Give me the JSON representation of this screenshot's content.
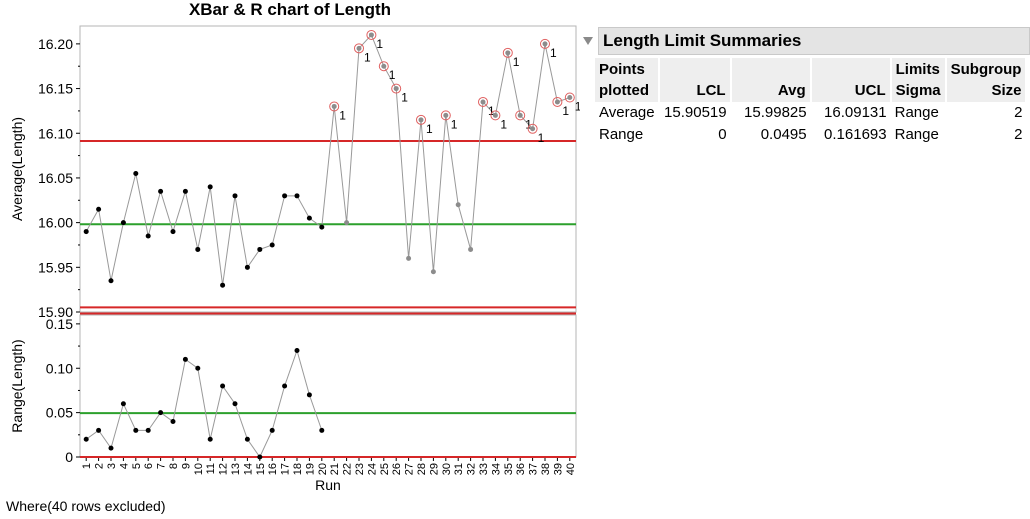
{
  "chart_data": [
    {
      "type": "line",
      "title": "XBar & R chart of Length",
      "xlabel": "Run",
      "ylabel": "Average(Length)",
      "x": [
        1,
        2,
        3,
        4,
        5,
        6,
        7,
        8,
        9,
        10,
        11,
        12,
        13,
        14,
        15,
        16,
        17,
        18,
        19,
        20,
        21,
        22,
        23,
        24,
        25,
        26,
        27,
        28,
        29,
        30,
        31,
        32,
        33,
        34,
        35,
        36,
        37,
        38,
        39,
        40
      ],
      "values": [
        15.99,
        16.015,
        15.935,
        16.0,
        16.055,
        15.985,
        16.035,
        15.99,
        16.035,
        15.97,
        16.04,
        15.93,
        16.03,
        15.95,
        15.97,
        15.975,
        16.03,
        16.03,
        16.005,
        15.995,
        16.13,
        16.0,
        16.195,
        16.21,
        16.175,
        16.15,
        15.96,
        16.115,
        15.945,
        16.12,
        16.02,
        15.97,
        16.135,
        16.12,
        16.19,
        16.12,
        16.105,
        16.2,
        16.135,
        16.14
      ],
      "flagged_test_label": "1",
      "flagged_runs": [
        21,
        23,
        24,
        25,
        26,
        28,
        30,
        33,
        34,
        35,
        36,
        37,
        38,
        39,
        40
      ],
      "excluded_runs_from": 21,
      "ylim": [
        15.9,
        16.22
      ],
      "yticks": [
        "15.90",
        "15.95",
        "16.00",
        "16.05",
        "16.10",
        "16.15",
        "16.20"
      ],
      "limits": {
        "LCL": 15.90519,
        "Avg": 15.99825,
        "UCL": 16.09131
      },
      "colors": {
        "center": "#2ca02c",
        "limit": "#d62728",
        "point": "#000000",
        "excluded_point": "#8c8c8c",
        "line": "#999999"
      }
    },
    {
      "type": "line",
      "xlabel": "Run",
      "ylabel": "Range(Length)",
      "x": [
        1,
        2,
        3,
        4,
        5,
        6,
        7,
        8,
        9,
        10,
        11,
        12,
        13,
        14,
        15,
        16,
        17,
        18,
        19,
        20
      ],
      "values": [
        0.02,
        0.03,
        0.01,
        0.06,
        0.03,
        0.03,
        0.05,
        0.04,
        0.11,
        0.1,
        0.02,
        0.08,
        0.06,
        0.02,
        0.0,
        0.03,
        0.08,
        0.12,
        0.07,
        0.03
      ],
      "ylim": [
        0,
        0.16
      ],
      "yticks": [
        "0",
        "0.05",
        "0.10",
        "0.15"
      ],
      "limits": {
        "LCL": 0,
        "Avg": 0.0495,
        "UCL": 0.161693
      }
    }
  ],
  "summary": {
    "title": "Length Limit Summaries",
    "headers": {
      "points": [
        "Points",
        "plotted"
      ],
      "lcl": "LCL",
      "avg": "Avg",
      "ucl": "UCL",
      "sigma": [
        "Limits",
        "Sigma"
      ],
      "size": [
        "Subgroup",
        "Size"
      ]
    },
    "rows": [
      {
        "points": "Average",
        "lcl": "15.90519",
        "avg": "15.99825",
        "ucl": "16.09131",
        "sigma": "Range",
        "size": "2"
      },
      {
        "points": "Range",
        "lcl": "0",
        "avg": "0.0495",
        "ucl": "0.161693",
        "sigma": "Range",
        "size": "2"
      }
    ]
  },
  "footer": "Where(40 rows excluded)"
}
